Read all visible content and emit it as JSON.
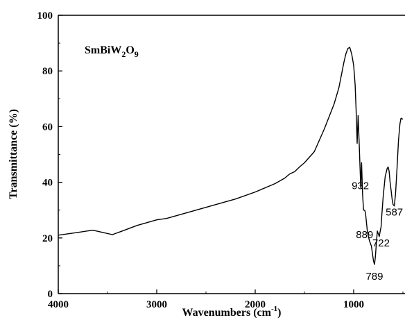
{
  "chart_data": {
    "type": "line",
    "title": "",
    "xlabel_main": "Wavenumbers (cm",
    "xlabel_sup": "-1",
    "xlabel_end": ")",
    "ylabel": "Transmittance (%)",
    "xlim": [
      4000,
      400
    ],
    "ylim": [
      0,
      100
    ],
    "x_ticks": [
      4000,
      3000,
      2000,
      1000
    ],
    "y_ticks": [
      0,
      20,
      40,
      60,
      80,
      100
    ],
    "grid": false,
    "legend": "none",
    "line_color": "#000000",
    "sample": {
      "base": "SmBiW",
      "sub1": "2",
      "mid": "O",
      "sub2": "9"
    },
    "annotations": [
      {
        "text": "932",
        "x": 932,
        "y": 37.5
      },
      {
        "text": "889",
        "x": 889,
        "y": 20
      },
      {
        "text": "789",
        "x": 789,
        "y": 5
      },
      {
        "text": "722",
        "x": 722,
        "y": 17
      },
      {
        "text": "587",
        "x": 587,
        "y": 28
      }
    ],
    "series": [
      {
        "x": [
          4000,
          3800,
          3650,
          3550,
          3450,
          3350,
          3200,
          3000,
          2900,
          2800,
          2600,
          2400,
          2200,
          2000,
          1800,
          1700,
          1650,
          1600,
          1550,
          1500,
          1450,
          1400,
          1300,
          1200,
          1150,
          1100,
          1080,
          1060,
          1040,
          1020,
          1000,
          985,
          975,
          965,
          955,
          945,
          935,
          928,
          920,
          910,
          900,
          889,
          880,
          860,
          840,
          820,
          800,
          789,
          780,
          770,
          760,
          750,
          740,
          730,
          722,
          715,
          700,
          680,
          660,
          650,
          640,
          630,
          620,
          610,
          600,
          587,
          575,
          560,
          545,
          530,
          520,
          510,
          505
        ],
        "y": [
          21,
          22,
          22.8,
          22,
          21.2,
          22.5,
          24.5,
          26.5,
          27,
          28,
          30,
          32,
          34,
          36.5,
          39.5,
          41.5,
          43,
          43.8,
          45.5,
          47,
          49,
          51,
          59,
          68,
          74,
          83,
          86,
          88,
          88.5,
          86,
          82,
          75,
          66,
          54,
          64,
          55,
          45,
          38,
          47,
          36,
          30,
          30,
          29,
          22,
          19,
          17,
          12,
          10.5,
          13,
          18,
          22.5,
          21.5,
          20.5,
          22.5,
          24,
          28,
          35,
          42,
          45,
          45.5,
          44,
          40,
          37,
          34,
          32,
          31.5,
          36,
          45,
          55,
          61,
          63,
          63,
          62.5
        ]
      }
    ]
  }
}
